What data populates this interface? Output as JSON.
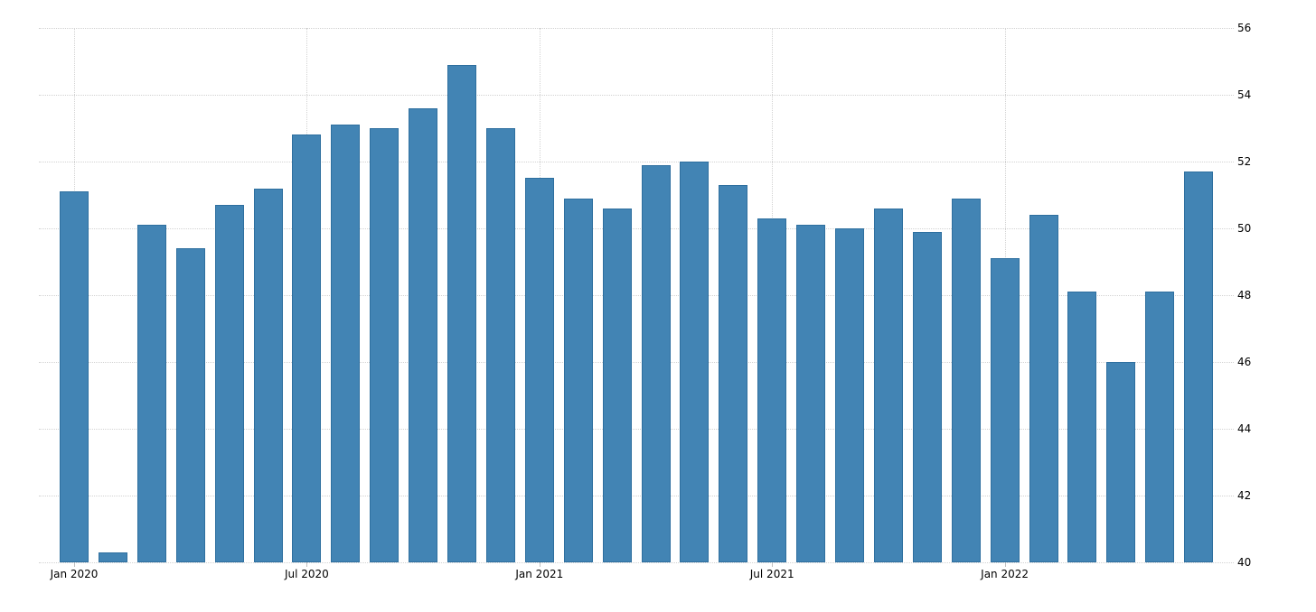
{
  "chart_data": {
    "type": "bar",
    "title": "",
    "categories": [
      "Jan 2020",
      "Feb 2020",
      "Mar 2020",
      "Apr 2020",
      "May 2020",
      "Jun 2020",
      "Jul 2020",
      "Aug 2020",
      "Sep 2020",
      "Oct 2020",
      "Nov 2020",
      "Dec 2020",
      "Jan 2021",
      "Feb 2021",
      "Mar 2021",
      "Apr 2021",
      "May 2021",
      "Jun 2021",
      "Jul 2021",
      "Aug 2021",
      "Sep 2021",
      "Oct 2021",
      "Nov 2021",
      "Dec 2021",
      "Jan 2022",
      "Feb 2022",
      "Mar 2022",
      "Apr 2022",
      "May 2022",
      "Jun 2022"
    ],
    "values": [
      51.1,
      40.3,
      50.1,
      49.4,
      50.7,
      51.2,
      52.8,
      53.1,
      53.0,
      53.6,
      54.9,
      53.0,
      51.5,
      50.9,
      50.6,
      51.9,
      52.0,
      51.3,
      50.3,
      50.1,
      50.0,
      50.6,
      49.9,
      50.9,
      49.1,
      50.4,
      48.1,
      46.0,
      48.1,
      51.7
    ],
    "xlabel": "",
    "ylabel": "",
    "ylim": [
      40,
      56
    ],
    "y_ticks": [
      40,
      42,
      44,
      46,
      48,
      50,
      52,
      54,
      56
    ],
    "y_axis_side": "right",
    "x_tick_indices": [
      0,
      6,
      12,
      18,
      24
    ],
    "x_tick_labels": [
      "Jan 2020",
      "Jul 2020",
      "Jan 2021",
      "Jul 2021",
      "Jan 2022"
    ],
    "legend": "none",
    "grid": "dotted horizontal lines at every y tick, dotted vertical lines at labeled x ticks",
    "colors": {
      "bar_fill": "#4284b4",
      "bar_border": "#2e6f9f",
      "gridline": "#d2d2d2",
      "tick_mark": "#c0c0c0",
      "axis_text": "#000000",
      "background": "#ffffff"
    }
  }
}
